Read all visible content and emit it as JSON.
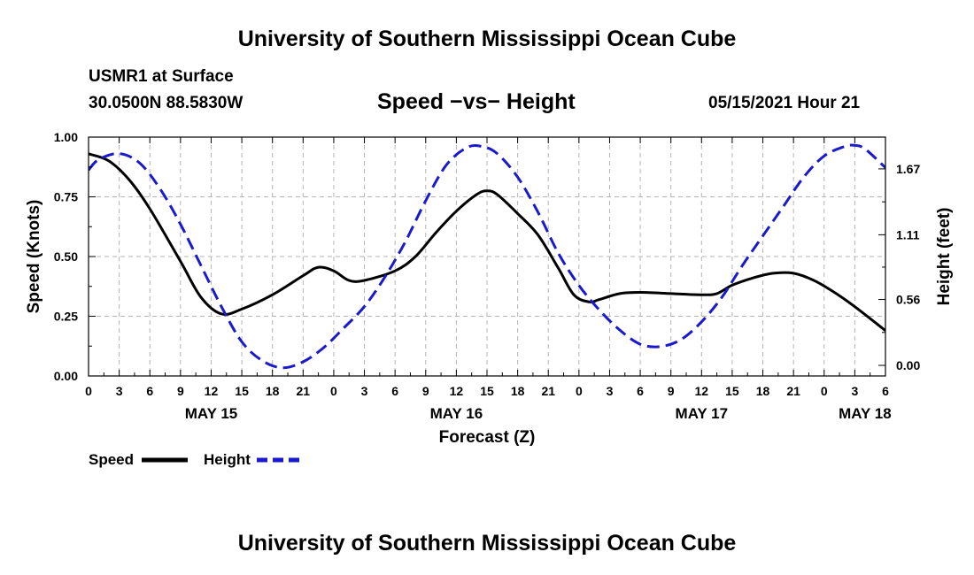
{
  "header": {
    "top_title": "University of Southern Mississippi Ocean Cube",
    "station": "USMR1 at Surface",
    "coords": "30.0500N  88.5830W",
    "chart_title": "Speed −vs− Height",
    "datetime": "05/15/2021 Hour 21"
  },
  "footer": {
    "bottom_title": "University of Southern Mississippi Ocean Cube"
  },
  "colors": {
    "speed": "#000000",
    "height": "#1a1acc",
    "grid": "#b4b4b4"
  },
  "chart_data": {
    "type": "line",
    "title": "Speed −vs− Height",
    "xlabel": "Forecast (Z)",
    "ylabel": "Speed (Knots)",
    "y2label": "Height (feet)",
    "xlim_hours": [
      0,
      78
    ],
    "ylim": [
      0,
      1
    ],
    "y2lim": [
      -0.09,
      1.94
    ],
    "y_ticks": [
      0,
      0.25,
      0.5,
      0.75,
      1.0
    ],
    "y_tick_labels": [
      "0.00",
      "0.25",
      "0.50",
      "0.75",
      "1.00"
    ],
    "y2_ticks": [
      0.0,
      0.56,
      1.11,
      1.67
    ],
    "y2_tick_labels": [
      "0.00",
      "0.56",
      "1.11",
      "1.67"
    ],
    "x_ticks_hours": [
      0,
      3,
      6,
      9,
      12,
      15,
      18,
      21,
      24,
      27,
      30,
      33,
      36,
      39,
      42,
      45,
      48,
      51,
      54,
      57,
      60,
      63,
      66,
      69,
      72,
      75,
      78
    ],
    "x_tick_labels": [
      "0",
      "3",
      "6",
      "9",
      "12",
      "15",
      "18",
      "21",
      "0",
      "3",
      "6",
      "9",
      "12",
      "15",
      "18",
      "21",
      "0",
      "3",
      "6",
      "9",
      "12",
      "15",
      "18",
      "21",
      "0",
      "3",
      "6"
    ],
    "date_labels": [
      {
        "label": "MAY 15",
        "hour": 12
      },
      {
        "label": "MAY 16",
        "hour": 36
      },
      {
        "label": "MAY 17",
        "hour": 60
      },
      {
        "label": "MAY 18",
        "hour": 76
      }
    ],
    "grid": true,
    "legend_position": "bottom-left",
    "series": [
      {
        "name": "Speed",
        "axis": "left",
        "style": "solid",
        "points": [
          [
            0,
            0.93
          ],
          [
            2,
            0.9
          ],
          [
            4,
            0.82
          ],
          [
            6,
            0.7
          ],
          [
            9,
            0.48
          ],
          [
            11,
            0.33
          ],
          [
            13,
            0.26
          ],
          [
            15,
            0.28
          ],
          [
            18,
            0.34
          ],
          [
            21,
            0.42
          ],
          [
            22.5,
            0.455
          ],
          [
            24,
            0.44
          ],
          [
            25.5,
            0.4
          ],
          [
            27,
            0.4
          ],
          [
            30,
            0.44
          ],
          [
            32,
            0.5
          ],
          [
            34,
            0.6
          ],
          [
            36,
            0.69
          ],
          [
            38,
            0.76
          ],
          [
            39,
            0.775
          ],
          [
            40,
            0.76
          ],
          [
            42,
            0.68
          ],
          [
            44,
            0.59
          ],
          [
            46,
            0.45
          ],
          [
            47.5,
            0.34
          ],
          [
            49,
            0.31
          ],
          [
            50,
            0.32
          ],
          [
            52,
            0.345
          ],
          [
            54,
            0.35
          ],
          [
            57,
            0.345
          ],
          [
            60,
            0.34
          ],
          [
            61.5,
            0.345
          ],
          [
            63,
            0.38
          ],
          [
            65,
            0.41
          ],
          [
            67,
            0.43
          ],
          [
            69,
            0.43
          ],
          [
            71,
            0.4
          ],
          [
            73,
            0.35
          ],
          [
            75,
            0.29
          ],
          [
            78,
            0.19
          ]
        ]
      },
      {
        "name": "Height",
        "axis": "right",
        "style": "dashed",
        "points": [
          [
            0,
            1.66
          ],
          [
            1,
            1.75
          ],
          [
            3,
            1.8
          ],
          [
            5,
            1.72
          ],
          [
            7,
            1.5
          ],
          [
            9,
            1.2
          ],
          [
            11,
            0.85
          ],
          [
            13,
            0.5
          ],
          [
            15,
            0.2
          ],
          [
            17,
            0.04
          ],
          [
            19,
            -0.02
          ],
          [
            21,
            0.03
          ],
          [
            23,
            0.15
          ],
          [
            25,
            0.32
          ],
          [
            27,
            0.5
          ],
          [
            29,
            0.75
          ],
          [
            31,
            1.05
          ],
          [
            33,
            1.4
          ],
          [
            35,
            1.7
          ],
          [
            37,
            1.85
          ],
          [
            38.5,
            1.86
          ],
          [
            40,
            1.8
          ],
          [
            42,
            1.6
          ],
          [
            44,
            1.3
          ],
          [
            46,
            0.95
          ],
          [
            48,
            0.68
          ],
          [
            50,
            0.47
          ],
          [
            52,
            0.3
          ],
          [
            54,
            0.18
          ],
          [
            56,
            0.16
          ],
          [
            58,
            0.22
          ],
          [
            60,
            0.37
          ],
          [
            62,
            0.58
          ],
          [
            64,
            0.85
          ],
          [
            66,
            1.1
          ],
          [
            68,
            1.35
          ],
          [
            70,
            1.6
          ],
          [
            72,
            1.78
          ],
          [
            74,
            1.86
          ],
          [
            75,
            1.87
          ],
          [
            76,
            1.84
          ],
          [
            78,
            1.68
          ]
        ]
      }
    ]
  }
}
